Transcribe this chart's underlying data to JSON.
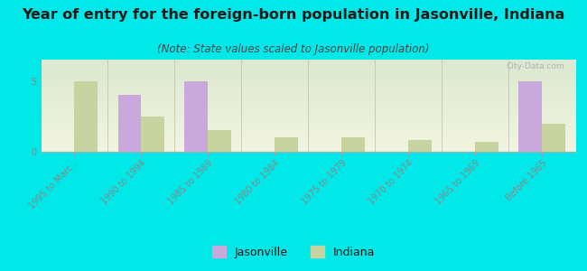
{
  "title": "Year of entry for the foreign-born population in Jasonville, Indiana",
  "subtitle": "(Note: State values scaled to Jasonville population)",
  "categories": [
    "1995 to Marc...",
    "1990 to 1994",
    "1985 to 1989",
    "1980 to 1984",
    "1975 to 1979",
    "1970 to 1974",
    "1965 to 1969",
    "Before 1965"
  ],
  "jasonville_values": [
    0,
    4,
    5,
    0,
    0,
    0,
    0,
    5
  ],
  "indiana_values": [
    5,
    2.5,
    1.5,
    1,
    1,
    0.8,
    0.7,
    2
  ],
  "jasonville_color": "#c9a8dc",
  "indiana_color": "#c8d4a0",
  "background_color": "#00e8e8",
  "plot_bg_gradient_top": "#dce8d0",
  "plot_bg_gradient_bottom": "#f2f5e0",
  "ylim": [
    0,
    6.5
  ],
  "yticks": [
    0,
    5
  ],
  "bar_width": 0.35,
  "title_fontsize": 11.5,
  "subtitle_fontsize": 8.5,
  "tick_label_fontsize": 7,
  "legend_fontsize": 9,
  "watermark": "City-Data.com",
  "tick_color": "#888888",
  "title_color": "#1a1a1a",
  "subtitle_color": "#444444"
}
